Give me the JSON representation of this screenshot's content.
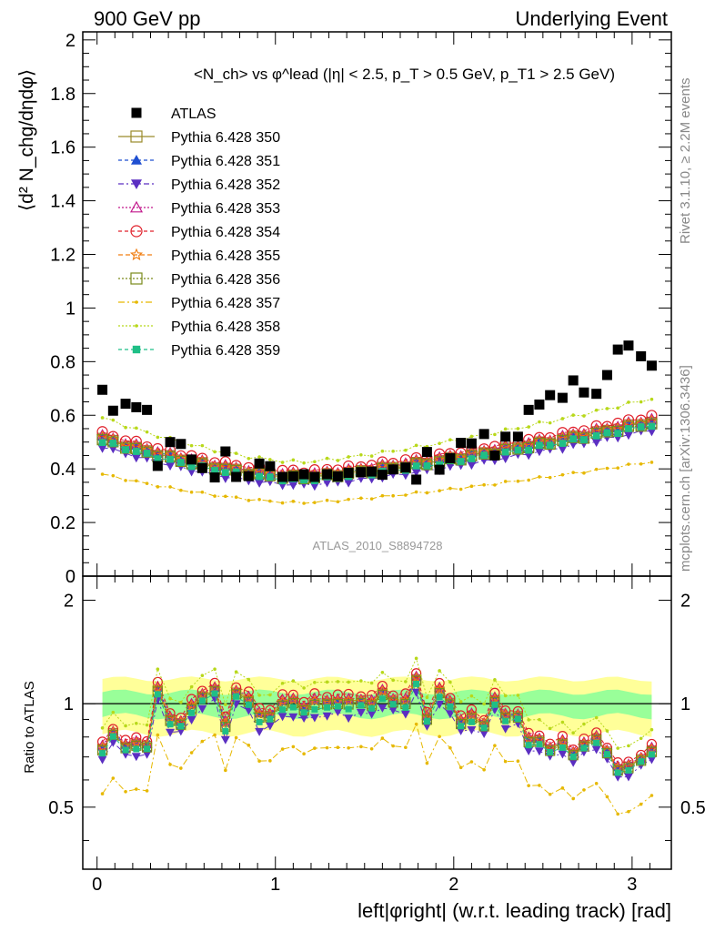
{
  "header": {
    "left": "900 GeV pp",
    "right": "Underlying Event"
  },
  "side_labels": {
    "rivet": "Rivet 3.1.10, ≥ 2.2M events",
    "mcplots": "mcplots.cern.ch [arXiv:1306.3436]"
  },
  "watermark": "ATLAS_2010_S8894728",
  "chart_data": [
    {
      "type": "scatter",
      "panel": "main",
      "title": "<N_ch> vs φ^lead (|η| < 2.5, p_T > 0.5 GeV, p_T1 > 2.5 GeV)",
      "ylabel": "⟨d² N_chg/dηdφ⟩",
      "xlim": [
        -0.08,
        3.22
      ],
      "ylim": [
        0,
        2.03
      ],
      "yticks": [
        0,
        0.2,
        0.4,
        0.6,
        0.8,
        1,
        1.2,
        1.4,
        1.6,
        1.8,
        2
      ],
      "ytick_labels": [
        "0",
        "0.2",
        "0.4",
        "0.6",
        "0.8",
        "1",
        "1.2",
        "1.4",
        "1.6",
        "1.8",
        "2"
      ],
      "legend": "top-left",
      "data_x": [
        0.03,
        0.09,
        0.16,
        0.22,
        0.28,
        0.34,
        0.41,
        0.47,
        0.53,
        0.59,
        0.66,
        0.72,
        0.78,
        0.85,
        0.91,
        0.97,
        1.04,
        1.1,
        1.16,
        1.22,
        1.29,
        1.35,
        1.41,
        1.48,
        1.54,
        1.6,
        1.66,
        1.73,
        1.79,
        1.85,
        1.92,
        1.98,
        2.04,
        2.1,
        2.17,
        2.23,
        2.29,
        2.36,
        2.42,
        2.48,
        2.54,
        2.61,
        2.67,
        2.73,
        2.8,
        2.86,
        2.92,
        2.98,
        3.05,
        3.11
      ],
      "atlas": [
        0.695,
        0.617,
        0.643,
        0.63,
        0.62,
        0.411,
        0.5,
        0.493,
        0.435,
        0.403,
        0.368,
        0.465,
        0.37,
        0.373,
        0.42,
        0.41,
        0.37,
        0.372,
        0.38,
        0.37,
        0.38,
        0.372,
        0.385,
        0.388,
        0.39,
        0.378,
        0.398,
        0.405,
        0.36,
        0.463,
        0.397,
        0.44,
        0.497,
        0.495,
        0.53,
        0.45,
        0.52,
        0.52,
        0.62,
        0.64,
        0.675,
        0.665,
        0.73,
        0.685,
        0.68,
        0.75,
        0.845,
        0.86,
        0.82,
        0.785
      ],
      "series": [
        {
          "name": "Pythia 6.428 350",
          "color": "#9a8a2a",
          "marker": "square-open",
          "dash": "",
          "offset": 0.0,
          "scale": 1.0
        },
        {
          "name": "Pythia 6.428 351",
          "color": "#1f4fd1",
          "marker": "triangle-up",
          "dash": "4,3",
          "offset": 0.005,
          "scale": 1.0
        },
        {
          "name": "Pythia 6.428 352",
          "color": "#5b2fc2",
          "marker": "triangle-down",
          "dash": "6,3,2,3",
          "offset": -0.03,
          "scale": 1.0
        },
        {
          "name": "Pythia 6.428 353",
          "color": "#c2188c",
          "marker": "triangle-open",
          "dash": "2,2",
          "offset": 0.01,
          "scale": 1.0
        },
        {
          "name": "Pythia 6.428 354",
          "color": "#e0202a",
          "marker": "circle-open",
          "dash": "4,3",
          "offset": 0.02,
          "scale": 1.0
        },
        {
          "name": "Pythia 6.428 355",
          "color": "#f07d10",
          "marker": "star-open",
          "dash": "5,3",
          "offset": 0.005,
          "scale": 1.0
        },
        {
          "name": "Pythia 6.428 356",
          "color": "#7a8a1a",
          "marker": "square-open",
          "dash": "2,2",
          "offset": 0.0,
          "scale": 0.99
        },
        {
          "name": "Pythia 6.428 357",
          "color": "#e6b800",
          "marker": "dot",
          "dash": "7,3,2,3",
          "offset": 0.0,
          "scale": 0.74
        },
        {
          "name": "Pythia 6.428 358",
          "color": "#b8d81a",
          "marker": "dot",
          "dash": "2,2",
          "offset": 0.0,
          "scale": 1.15
        },
        {
          "name": "Pythia 6.428 359",
          "color": "#1fbf86",
          "marker": "square-filled",
          "dash": "4,3",
          "offset": -0.012,
          "scale": 1.0
        }
      ]
    },
    {
      "type": "scatter",
      "panel": "ratio",
      "ylabel": "Ratio to ATLAS",
      "xlabel": "left|φright| (w.r.t. leading track) [rad]",
      "xlim": [
        -0.08,
        3.22
      ],
      "ylim": [
        0.33,
        2.35
      ],
      "yticks": [
        0.5,
        1,
        2
      ],
      "ytick_labels": [
        "0.5",
        "1",
        "2"
      ],
      "xticks": [
        0,
        1,
        2,
        3
      ],
      "xtick_labels": [
        "0",
        "1",
        "2",
        "3"
      ],
      "band_green_halfwidth": 0.08,
      "band_yellow_halfwidth": 0.18
    }
  ]
}
